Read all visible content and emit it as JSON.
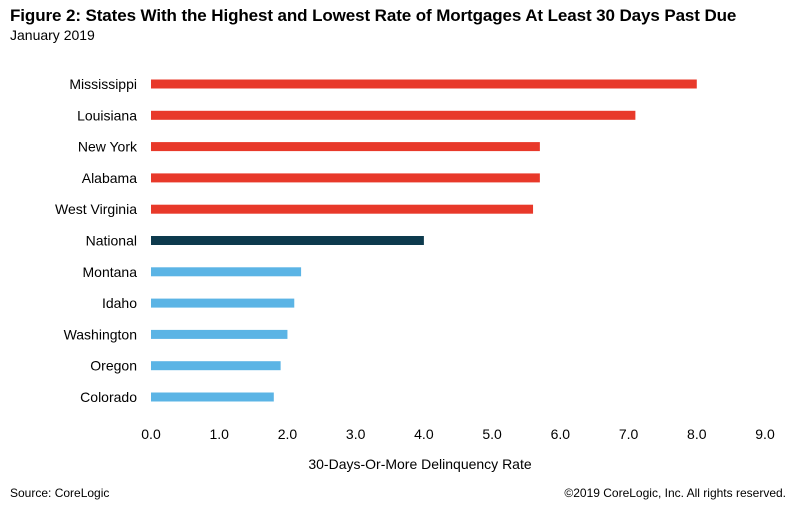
{
  "header": {
    "title": "Figure 2: States With the Highest and Lowest Rate of Mortgages At Least 30 Days Past Due",
    "subtitle": "January 2019"
  },
  "footer": {
    "source": "Source: CoreLogic",
    "copyright": "©2019 CoreLogic, Inc. All rights reserved."
  },
  "colors": {
    "highest": "#e8392a",
    "national": "#0d3a4d",
    "lowest": "#5bb4e5"
  },
  "chart_data": {
    "type": "bar",
    "orientation": "horizontal",
    "title": "Figure 2: States With the Highest and Lowest Rate of Mortgages At Least 30 Days Past Due",
    "subtitle": "January 2019",
    "xlabel": "30-Days-Or-More Delinquency Rate",
    "ylabel": "",
    "xlim": [
      0,
      9
    ],
    "xticks": [
      "0.0",
      "1.0",
      "2.0",
      "3.0",
      "4.0",
      "5.0",
      "6.0",
      "7.0",
      "8.0",
      "9.0"
    ],
    "grid": false,
    "categories": [
      "Mississippi",
      "Louisiana",
      "New York",
      "Alabama",
      "West Virginia",
      "National",
      "Montana",
      "Idaho",
      "Washington",
      "Oregon",
      "Colorado"
    ],
    "values": [
      8.0,
      7.1,
      5.7,
      5.7,
      5.6,
      4.0,
      2.2,
      2.1,
      2.0,
      1.9,
      1.8
    ],
    "groups": [
      "highest",
      "highest",
      "highest",
      "highest",
      "highest",
      "national",
      "lowest",
      "lowest",
      "lowest",
      "lowest",
      "lowest"
    ]
  }
}
